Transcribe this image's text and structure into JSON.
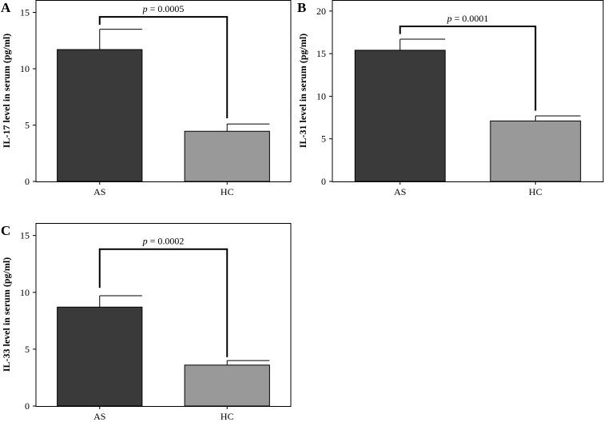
{
  "chart_data": [
    {
      "type": "bar",
      "panel_label": "A",
      "categories": [
        "AS",
        "HC"
      ],
      "values": [
        11.7,
        4.45
      ],
      "error_upper": [
        13.5,
        5.1
      ],
      "ylabel": "IL-17 level in serum (pg/ml)",
      "ylim": [
        0,
        16.1
      ],
      "yticks": [
        0,
        5,
        10,
        15
      ],
      "annotation": {
        "p_symbol": "p",
        "text": " = 0.0005",
        "bracket_level": 14.6,
        "left_end": 13.9,
        "right_end": 5.6
      },
      "colors": [
        "#3a3a3a",
        "#999999"
      ]
    },
    {
      "type": "bar",
      "panel_label": "B",
      "categories": [
        "AS",
        "HC"
      ],
      "values": [
        15.4,
        7.1
      ],
      "error_upper": [
        16.7,
        7.7
      ],
      "ylabel": "IL-31 level in serum (pg/ml)",
      "ylim": [
        0,
        21.3
      ],
      "yticks": [
        0,
        5,
        10,
        15,
        20
      ],
      "annotation": {
        "p_symbol": "p",
        "text": " = 0.0001",
        "bracket_level": 18.2,
        "left_end": 17.3,
        "right_end": 8.3
      },
      "colors": [
        "#3a3a3a",
        "#999999"
      ]
    },
    {
      "type": "bar",
      "panel_label": "C",
      "categories": [
        "AS",
        "HC"
      ],
      "values": [
        8.7,
        3.6
      ],
      "error_upper": [
        9.7,
        4.0
      ],
      "ylabel": "IL-33 level in serum (pg/ml)",
      "ylim": [
        0,
        16.1
      ],
      "yticks": [
        0,
        5,
        10,
        15
      ],
      "annotation": {
        "p_symbol": "p",
        "text": " = 0.0002",
        "bracket_level": 13.8,
        "left_end": 10.4,
        "right_end": 4.3
      },
      "colors": [
        "#3a3a3a",
        "#999999"
      ]
    }
  ]
}
